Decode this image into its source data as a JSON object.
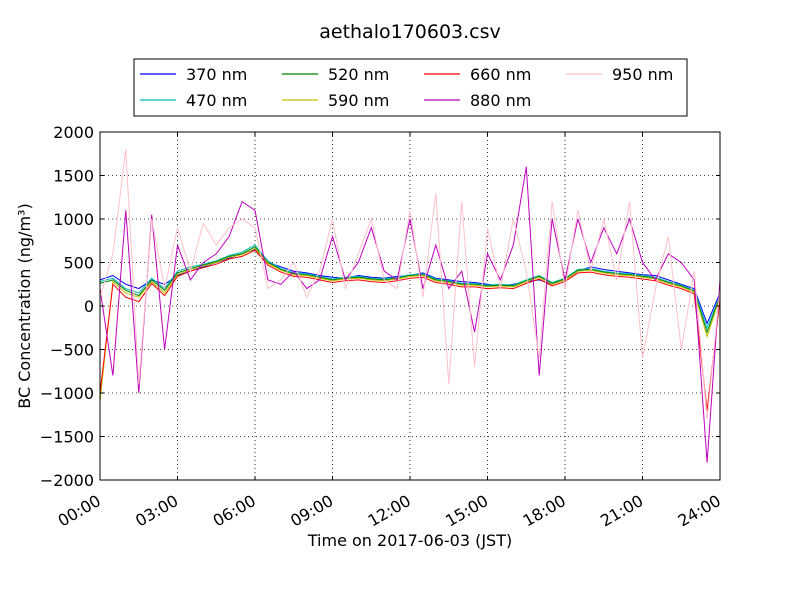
{
  "chart_data": {
    "type": "line",
    "title": "aethalo170603.csv",
    "xlabel": "Time on 2017-06-03 (JST)",
    "ylabel": "BC Concentration (ng/m³)",
    "xlim": [
      "00:00",
      "24:00"
    ],
    "ylim": [
      -2000,
      2000
    ],
    "x_ticks": [
      "00:00",
      "03:00",
      "06:00",
      "09:00",
      "12:00",
      "15:00",
      "18:00",
      "21:00",
      "24:00"
    ],
    "y_ticks": [
      "2000",
      "1500",
      "1000",
      "500",
      "0",
      "−500",
      "−1000",
      "−1500",
      "−2000"
    ],
    "grid": true,
    "legend_position": "top",
    "x_times_hours": [
      0,
      0.5,
      1,
      1.5,
      2,
      2.5,
      3,
      3.5,
      4,
      4.5,
      5,
      5.5,
      6,
      6.5,
      7,
      7.5,
      8,
      8.5,
      9,
      9.5,
      10,
      10.5,
      11,
      11.5,
      12,
      12.5,
      13,
      13.5,
      14,
      14.5,
      15,
      15.5,
      16,
      16.5,
      17,
      17.5,
      18,
      18.5,
      19,
      19.5,
      20,
      20.5,
      21,
      21.5,
      22,
      22.5,
      23,
      23.5,
      24
    ],
    "series": [
      {
        "name": "370 nm",
        "color": "#0000ff",
        "values": [
          300,
          350,
          250,
          200,
          300,
          250,
          350,
          400,
          450,
          500,
          550,
          600,
          650,
          500,
          450,
          400,
          380,
          350,
          330,
          320,
          350,
          330,
          320,
          340,
          350,
          380,
          320,
          300,
          280,
          270,
          250,
          230,
          250,
          280,
          300,
          250,
          300,
          400,
          450,
          420,
          400,
          380,
          360,
          350,
          300,
          250,
          200,
          -200,
          150
        ]
      },
      {
        "name": "470 nm",
        "color": "#00bfbf",
        "values": [
          280,
          320,
          200,
          150,
          320,
          200,
          400,
          450,
          480,
          520,
          580,
          620,
          700,
          520,
          430,
          380,
          370,
          340,
          310,
          330,
          340,
          320,
          310,
          330,
          360,
          370,
          310,
          290,
          260,
          260,
          240,
          250,
          240,
          300,
          350,
          270,
          320,
          420,
          430,
          400,
          380,
          370,
          350,
          330,
          280,
          240,
          180,
          -250,
          120
        ]
      },
      {
        "name": "520 nm",
        "color": "#008000",
        "values": [
          260,
          300,
          180,
          120,
          300,
          180,
          380,
          430,
          470,
          510,
          570,
          600,
          680,
          500,
          420,
          370,
          360,
          330,
          300,
          320,
          330,
          310,
          300,
          320,
          350,
          360,
          300,
          280,
          250,
          250,
          230,
          240,
          230,
          290,
          340,
          260,
          310,
          410,
          420,
          390,
          370,
          360,
          340,
          320,
          270,
          230,
          170,
          -300,
          110
        ]
      },
      {
        "name": "590 nm",
        "color": "#bfbf00",
        "values": [
          -1100,
          280,
          150,
          100,
          280,
          150,
          360,
          420,
          460,
          500,
          560,
          590,
          660,
          490,
          410,
          360,
          350,
          320,
          290,
          310,
          320,
          300,
          290,
          310,
          340,
          350,
          290,
          270,
          240,
          240,
          220,
          230,
          220,
          280,
          330,
          250,
          300,
          400,
          410,
          380,
          360,
          350,
          330,
          310,
          260,
          220,
          160,
          -350,
          100
        ]
      },
      {
        "name": "660 nm",
        "color": "#ff0000",
        "values": [
          -1000,
          250,
          100,
          50,
          260,
          120,
          340,
          400,
          440,
          480,
          540,
          570,
          640,
          470,
          390,
          340,
          330,
          300,
          270,
          290,
          300,
          280,
          270,
          290,
          320,
          330,
          270,
          250,
          220,
          220,
          200,
          210,
          200,
          260,
          310,
          230,
          280,
          380,
          390,
          360,
          340,
          330,
          310,
          290,
          240,
          200,
          140,
          -1200,
          80
        ]
      },
      {
        "name": "880 nm",
        "color": "#bf00bf",
        "values": [
          200,
          -800,
          1100,
          -1000,
          1050,
          -500,
          700,
          300,
          500,
          600,
          800,
          1200,
          1100,
          300,
          250,
          400,
          200,
          300,
          800,
          300,
          500,
          900,
          400,
          300,
          1000,
          200,
          700,
          200,
          400,
          -300,
          600,
          300,
          700,
          1600,
          -800,
          1000,
          300,
          1000,
          500,
          900,
          600,
          1000,
          500,
          300,
          600,
          500,
          300,
          -1800,
          300
        ]
      },
      {
        "name": "950 nm",
        "color": "#ffc0cb",
        "values": [
          100,
          600,
          1800,
          -900,
          1000,
          200,
          900,
          400,
          950,
          700,
          900,
          1000,
          900,
          200,
          300,
          500,
          100,
          400,
          1000,
          200,
          600,
          1000,
          300,
          200,
          1100,
          100,
          1300,
          -900,
          1200,
          -700,
          900,
          200,
          1000,
          400,
          -600,
          1200,
          200,
          1100,
          400,
          1000,
          300,
          1200,
          -600,
          200,
          800,
          -500,
          400,
          -1300,
          200
        ]
      }
    ]
  }
}
